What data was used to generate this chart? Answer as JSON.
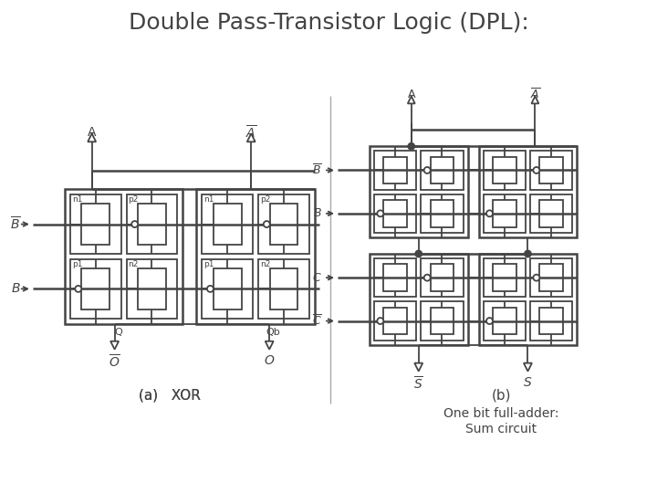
{
  "title": "Double Pass-Transistor Logic (DPL):",
  "title_fontsize": 18,
  "bg_color": "#ffffff",
  "line_color": "#444444",
  "lw": 1.3,
  "lw2": 1.8,
  "fig_width": 7.2,
  "fig_height": 5.4,
  "label_a": "(a)   XOR",
  "label_b": "(b)",
  "label_b2": "One bit full-adder:\nSum circuit",
  "label_fontsize": 11,
  "sublabel_fontsize": 10
}
